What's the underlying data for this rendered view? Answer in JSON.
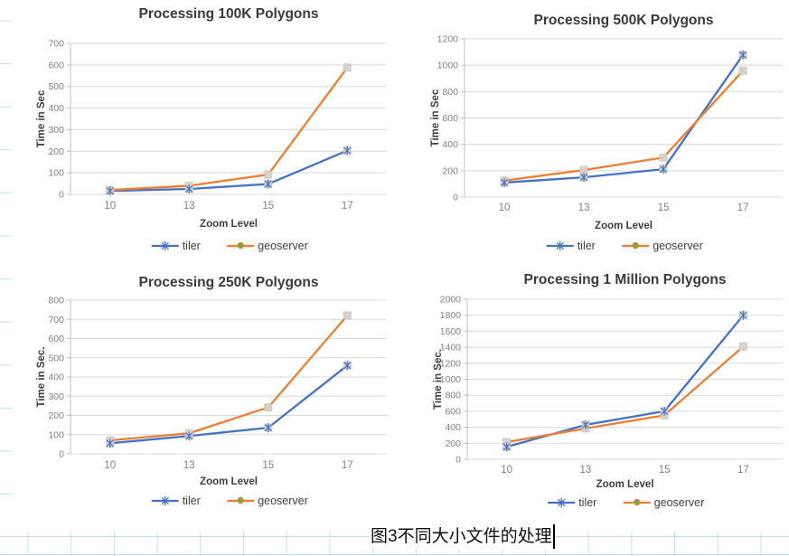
{
  "caption": {
    "text": "图3不同大小文件的处理"
  },
  "colors": {
    "tiler": "#4472C4",
    "geoserver": "#ED7D31",
    "geoserver_marker_dot": "#70AD47",
    "plot_gridline": "#D9D9D9",
    "axis_line": "#BFBFBF",
    "tick_text": "#808080",
    "dark_text": "#404040",
    "title_text": "#3A3A3A",
    "point_marker_fill": "#D8D3CC",
    "point_marker_stroke": "#C9C3BA",
    "document_grid_blue": "#C2E2F2"
  },
  "chart_data": [
    {
      "type": "line",
      "title": "Processing 100K Polygons",
      "xlabel": "Zoom Level",
      "ylabel": "Time in Sec",
      "categories": [
        "10",
        "13",
        "15",
        "17"
      ],
      "ylim": [
        0,
        700
      ],
      "ystep": 100,
      "grid": true,
      "legend_position": "bottom",
      "series": [
        {
          "name": "tiler",
          "color": "#4472C4",
          "marker": "star",
          "values": [
            16,
            25,
            48,
            203
          ]
        },
        {
          "name": "geoserver",
          "color": "#ED7D31",
          "marker": "dot",
          "values": [
            20,
            40,
            92,
            588
          ]
        }
      ]
    },
    {
      "type": "line",
      "title": "Processing 500K Polygons",
      "xlabel": "Zoom Level",
      "ylabel": "Time in Sec",
      "categories": [
        "10",
        "13",
        "15",
        "17"
      ],
      "ylim": [
        0,
        1200
      ],
      "ystep": 200,
      "grid": true,
      "legend_position": "bottom",
      "series": [
        {
          "name": "tiler",
          "color": "#4472C4",
          "marker": "star",
          "values": [
            110,
            150,
            212,
            1078
          ]
        },
        {
          "name": "geoserver",
          "color": "#ED7D31",
          "marker": "dot",
          "values": [
            125,
            205,
            300,
            958
          ]
        }
      ]
    },
    {
      "type": "line",
      "title": "Processing 250K Polygons",
      "xlabel": "Zoom Level",
      "ylabel": "Time in Sec.",
      "categories": [
        "10",
        "13",
        "15",
        "17"
      ],
      "ylim": [
        0,
        800
      ],
      "ystep": 100,
      "grid": true,
      "legend_position": "bottom",
      "series": [
        {
          "name": "tiler",
          "color": "#4472C4",
          "marker": "star",
          "values": [
            55,
            93,
            136,
            460
          ]
        },
        {
          "name": "geoserver",
          "color": "#ED7D31",
          "marker": "dot",
          "values": [
            70,
            107,
            242,
            720
          ]
        }
      ]
    },
    {
      "type": "line",
      "title": "Processing 1 Million Polygons",
      "xlabel": "Zoom Level",
      "ylabel": "Time in Sec.",
      "categories": [
        "10",
        "13",
        "15",
        "17"
      ],
      "ylim": [
        0,
        2000
      ],
      "ystep": 200,
      "grid": true,
      "legend_position": "bottom",
      "series": [
        {
          "name": "tiler",
          "color": "#4472C4",
          "marker": "star",
          "values": [
            155,
            430,
            600,
            1800
          ]
        },
        {
          "name": "geoserver",
          "color": "#ED7D31",
          "marker": "dot",
          "values": [
            215,
            385,
            550,
            1410
          ]
        }
      ]
    }
  ]
}
